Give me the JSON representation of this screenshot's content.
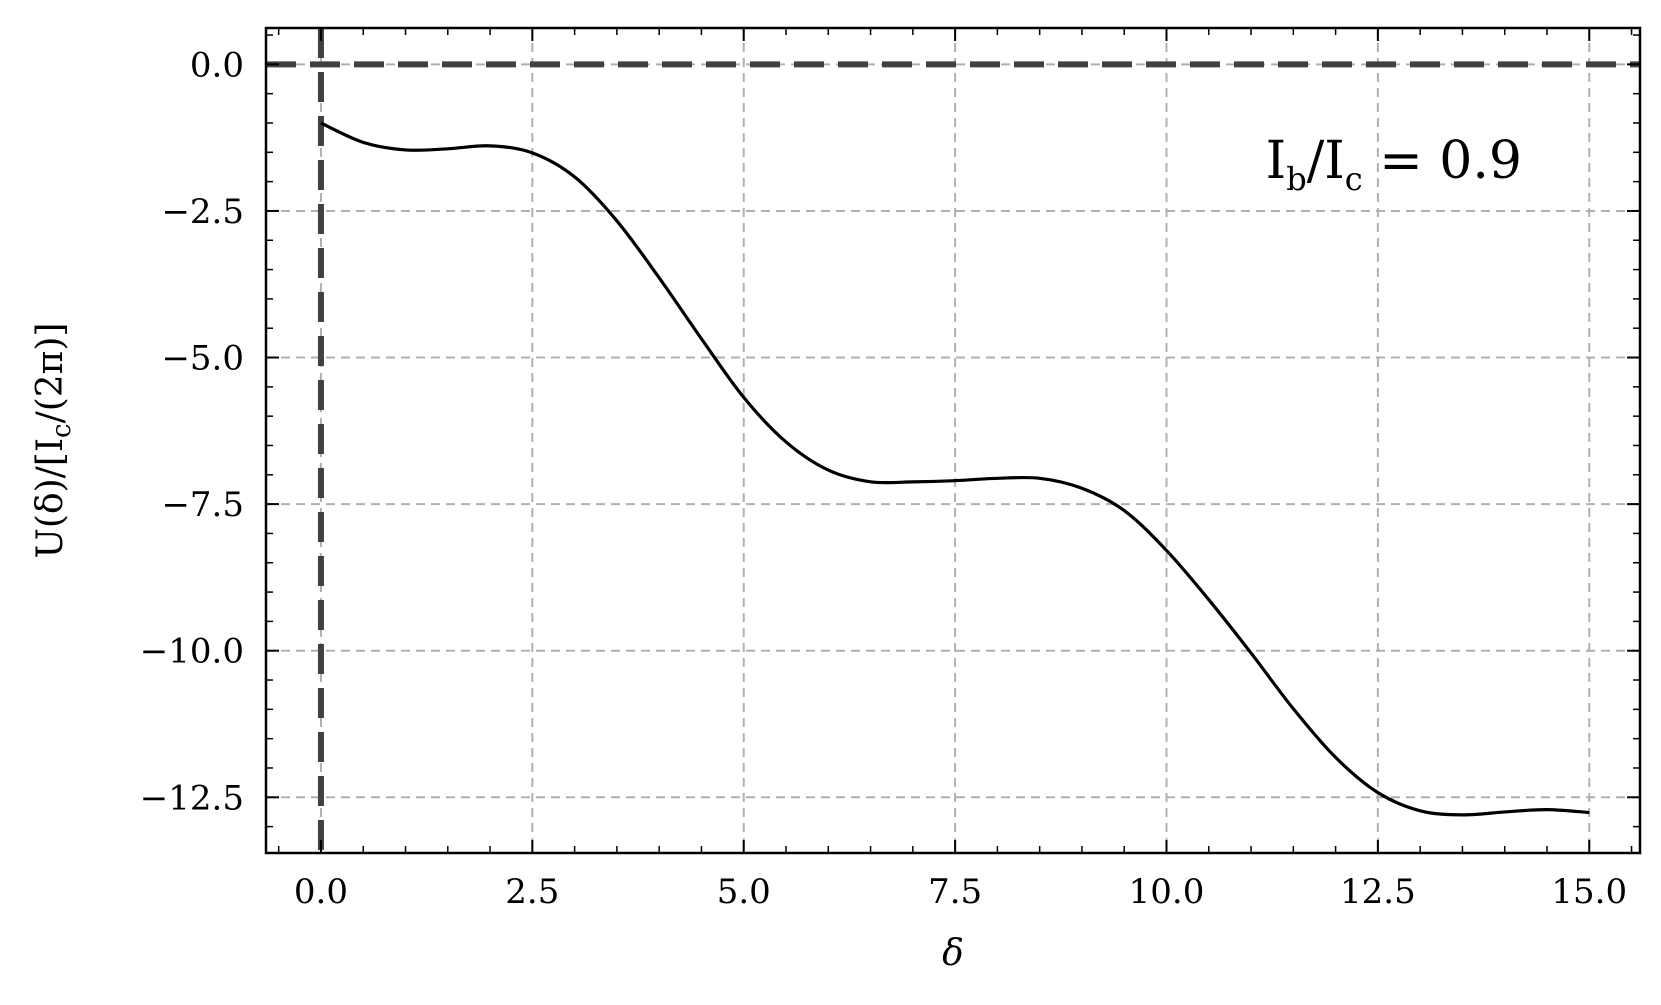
{
  "chart_data": {
    "type": "line",
    "xlabel": "δ",
    "ylabel": "U(δ)/[I_c/(2π)]",
    "ylabel_parts": {
      "pre": "U(δ)/[I",
      "sub": "c",
      "post": "/(2π)]"
    },
    "annotation": {
      "text": "I_b/I_c = 0.9",
      "p1": "I",
      "s1": "b",
      "p2": "/I",
      "s2": "c",
      "p3": " = 0.9"
    },
    "xlim": [
      -0.65,
      15.6
    ],
    "ylim": [
      -13.45,
      0.62
    ],
    "xticks": [
      0,
      2.5,
      5,
      7.5,
      10,
      12.5,
      15
    ],
    "xtick_labels": [
      "0.0",
      "2.5",
      "5.0",
      "7.5",
      "10.0",
      "12.5",
      "15.0"
    ],
    "yticks": [
      0,
      -2.5,
      -5,
      -7.5,
      -10,
      -12.5
    ],
    "ytick_labels": [
      "0.0",
      "−2.5",
      "−5.0",
      "−7.5",
      "−10.0",
      "−12.5"
    ],
    "grid": true,
    "reference_lines": [
      {
        "orientation": "horizontal",
        "value": 0,
        "style": "dashed"
      },
      {
        "orientation": "vertical",
        "value": 0,
        "style": "dashed"
      }
    ],
    "series": [
      {
        "x": [
          0,
          0.5,
          1.0,
          1.5,
          2.0,
          2.5,
          3.0,
          3.5,
          4.0,
          4.5,
          5.0,
          5.5,
          6.0,
          6.5,
          7.0,
          7.5,
          8.0,
          8.5,
          9.0,
          9.5,
          10.0,
          10.5,
          11.0,
          11.5,
          12.0,
          12.5,
          13.0,
          13.5,
          14.0,
          14.5,
          15.0
        ],
        "y": [
          -1.0,
          -1.33,
          -1.46,
          -1.44,
          -1.39,
          -1.51,
          -1.92,
          -2.67,
          -3.64,
          -4.68,
          -5.68,
          -6.44,
          -6.92,
          -7.12,
          -7.12,
          -7.1,
          -7.06,
          -7.06,
          -7.23,
          -7.61,
          -8.29,
          -9.13,
          -10.04,
          -10.99,
          -11.82,
          -12.42,
          -12.73,
          -12.8,
          -12.75,
          -12.71,
          -12.76
        ]
      }
    ],
    "colors": {
      "line": "#000000",
      "grid": "#b0b0b0",
      "reference": "#404040"
    }
  }
}
